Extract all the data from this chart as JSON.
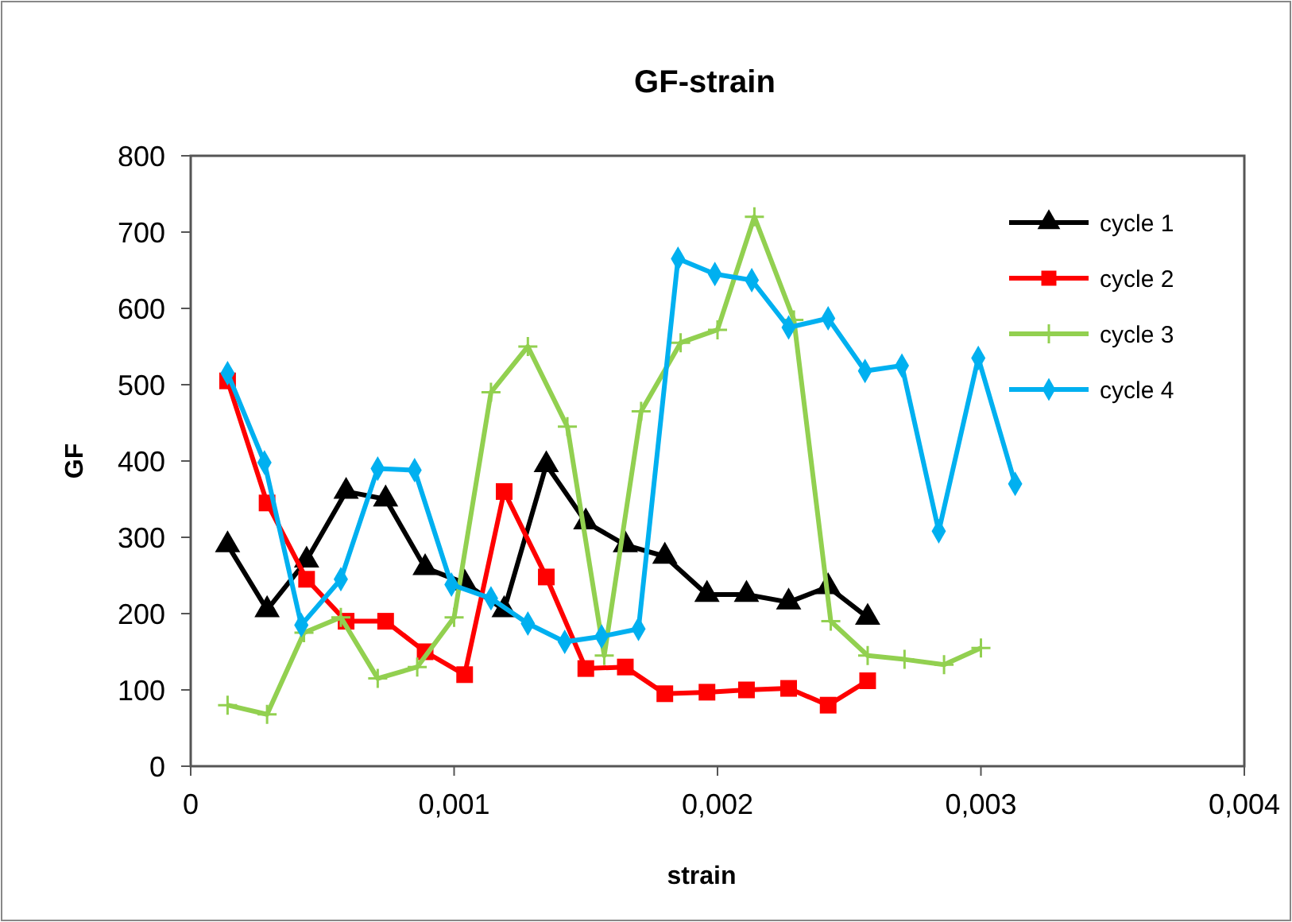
{
  "chart_data": {
    "type": "line",
    "title": "GF-strain",
    "xlabel": "strain",
    "ylabel": "GF",
    "xlim": [
      0,
      0.004
    ],
    "ylim": [
      0,
      800
    ],
    "xticks": [
      0,
      {
        "value": 0.001,
        "label": "0,001"
      },
      {
        "value": 0.002,
        "label": "0,002"
      },
      {
        "value": 0.003,
        "label": "0,003"
      },
      {
        "value": 0.004,
        "label": "0,004"
      }
    ],
    "yticks": [
      0,
      100,
      200,
      300,
      400,
      500,
      600,
      700,
      800
    ],
    "grid": false,
    "legend": "top right",
    "line_style": "solid",
    "series": [
      {
        "name": "cycle 1",
        "color": "#000000",
        "marker": "triangle",
        "x": [
          0.00014,
          0.00029,
          0.00044,
          0.00059,
          0.00074,
          0.00089,
          0.00104,
          0.00119,
          0.00135,
          0.0015,
          0.00165,
          0.0018,
          0.00196,
          0.00211,
          0.00227,
          0.00242,
          0.00257
        ],
        "values": [
          290,
          205,
          270,
          360,
          350,
          260,
          240,
          205,
          395,
          320,
          290,
          275,
          225,
          225,
          215,
          235,
          195
        ]
      },
      {
        "name": "cycle 2",
        "color": "#ff0000",
        "marker": "square",
        "x": [
          0.00014,
          0.00029,
          0.00044,
          0.00059,
          0.00074,
          0.00089,
          0.00104,
          0.00119,
          0.00135,
          0.0015,
          0.00165,
          0.0018,
          0.00196,
          0.00211,
          0.00227,
          0.00242,
          0.00257
        ],
        "values": [
          505,
          345,
          245,
          190,
          190,
          150,
          120,
          360,
          248,
          128,
          130,
          95,
          97,
          100,
          102,
          80,
          112
        ]
      },
      {
        "name": "cycle 3",
        "color": "#92d050",
        "marker": "cross",
        "x": [
          0.00014,
          0.00029,
          0.00043,
          0.00057,
          0.00071,
          0.00086,
          0.001,
          0.00114,
          0.00128,
          0.00143,
          0.00157,
          0.00171,
          0.00186,
          0.002,
          0.00214,
          0.00229,
          0.00243,
          0.00257,
          0.00271,
          0.00286,
          0.003
        ],
        "values": [
          80,
          68,
          175,
          195,
          115,
          130,
          195,
          490,
          550,
          445,
          145,
          465,
          555,
          572,
          720,
          585,
          190,
          145,
          140,
          133,
          155
        ]
      },
      {
        "name": "cycle 4",
        "color": "#00b0f0",
        "marker": "diamond",
        "x": [
          0.00014,
          0.00028,
          0.00042,
          0.00057,
          0.00071,
          0.00085,
          0.00099,
          0.00114,
          0.00128,
          0.00142,
          0.00156,
          0.0017,
          0.00185,
          0.00199,
          0.00213,
          0.00227,
          0.00242,
          0.00256,
          0.0027,
          0.00284,
          0.00299,
          0.00313
        ],
        "values": [
          515,
          398,
          185,
          245,
          390,
          388,
          238,
          220,
          187,
          163,
          170,
          180,
          665,
          645,
          637,
          575,
          587,
          518,
          525,
          308,
          535,
          370
        ]
      }
    ]
  }
}
